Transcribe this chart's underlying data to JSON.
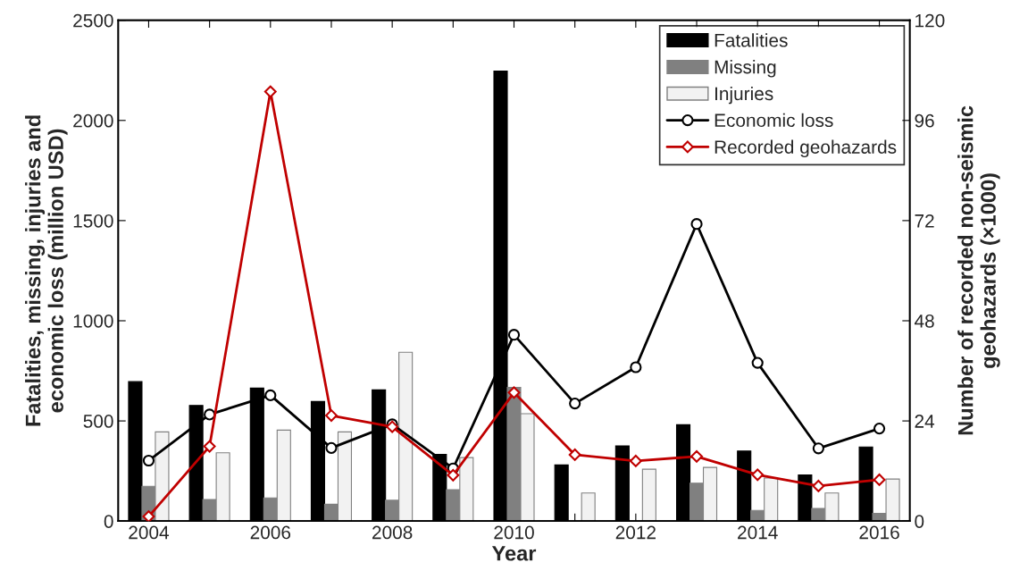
{
  "chart_data": {
    "type": "bar",
    "xlabel": "Year",
    "ylabel": "Fatalities, missing, injuries and\neconomic loss (million USD)",
    "y2label": "Number of recorded non-seismic\ngeohazards (×1000)",
    "categories": [
      "2004",
      null,
      "2006",
      null,
      "2008",
      null,
      "2010",
      null,
      "2012",
      null,
      "2014",
      null,
      "2016"
    ],
    "series": [
      {
        "name": "Fatalities",
        "color": "#000000",
        "values": [
          696,
          577,
          664,
          597,
          655,
          333,
          2246,
          280,
          375,
          481,
          350,
          230,
          370
        ]
      },
      {
        "name": "Missing",
        "color": "#808080",
        "values": [
          174,
          108,
          116,
          84,
          104,
          157,
          667,
          0,
          0,
          189,
          53,
          63,
          38
        ]
      },
      {
        "name": "Injuries",
        "color": "#f2f2f2",
        "values": [
          445,
          341,
          454,
          445,
          843,
          317,
          536,
          140,
          259,
          268,
          215,
          140,
          210
        ]
      },
      {
        "name": "Economic loss",
        "type": "line",
        "color": "#000000",
        "marker": "circle",
        "values": [
          302,
          532,
          628,
          365,
          483,
          263,
          930,
          587,
          768,
          1483,
          790,
          363,
          462
        ]
      },
      {
        "name": "Recorded geohazards",
        "type": "line",
        "color": "#c00000",
        "marker": "diamond",
        "axis": "y2",
        "values": [
          1.1,
          17.9,
          102.9,
          25.3,
          22.6,
          11,
          30.8,
          15.9,
          14.4,
          15.5,
          11.1,
          8.4,
          9.9
        ]
      }
    ],
    "ylim": [
      0,
      2500
    ],
    "yticks": [
      0,
      500,
      1000,
      1500,
      2000,
      2500
    ],
    "y2lim": [
      0,
      120
    ],
    "y2ticks": [
      0,
      24,
      48,
      72,
      96,
      120
    ],
    "grid": false,
    "legend": "top right"
  }
}
